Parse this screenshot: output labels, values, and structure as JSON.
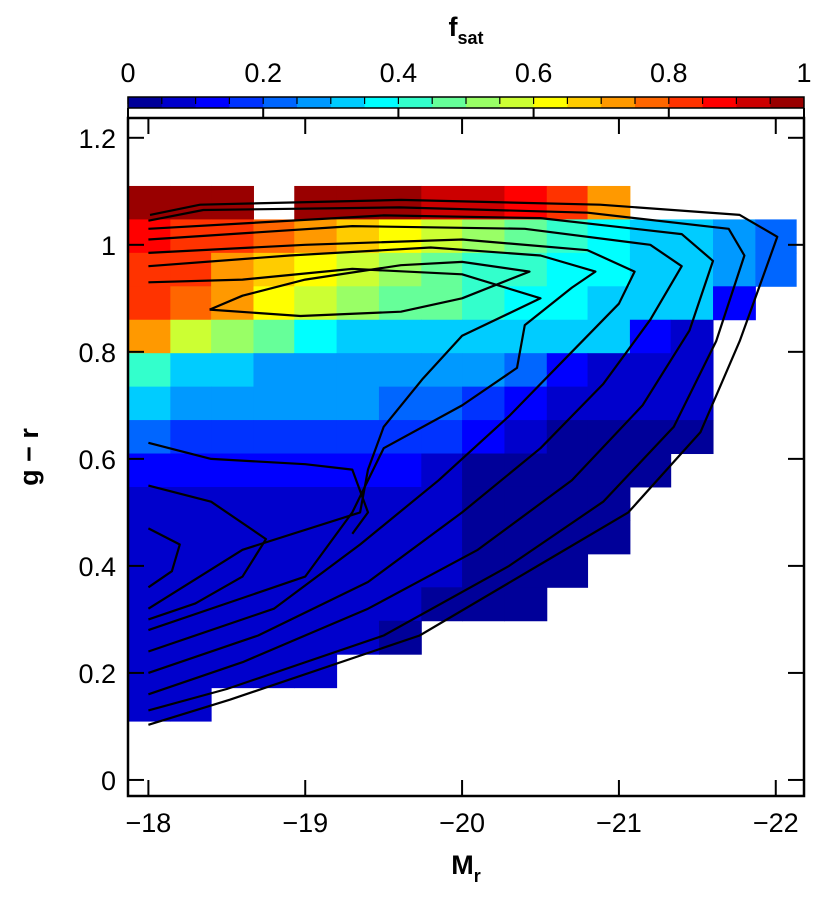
{
  "chart_data": {
    "type": "heatmap",
    "colormap": "jet",
    "colorbar": {
      "label": "f",
      "label_sub": "sat",
      "lim": [
        0,
        1
      ],
      "ticks": [
        0,
        0.2,
        0.4,
        0.6,
        0.8,
        1
      ],
      "levels": 20
    },
    "xlabel": "M",
    "xlabel_sub": "r",
    "ylabel": "g − r",
    "xlim": [
      -17.87,
      -22.18
    ],
    "ylim": [
      -0.03,
      1.237
    ],
    "xticks": [
      {
        "value": -18,
        "label": "−18"
      },
      {
        "value": -19,
        "label": "−19"
      },
      {
        "value": -20,
        "label": "−20"
      },
      {
        "value": -21,
        "label": "−21"
      },
      {
        "value": -22,
        "label": "−22"
      }
    ],
    "yticks": [
      0,
      0.2,
      0.4,
      0.6,
      0.8,
      1,
      1.2
    ],
    "x_edges": [
      -17.87,
      -18.14,
      -18.4,
      -18.67,
      -18.93,
      -19.2,
      -19.47,
      -19.74,
      -20.0,
      -20.27,
      -20.54,
      -20.8,
      -21.07,
      -21.33,
      -21.6,
      -21.87,
      -22.13
    ],
    "y_edges": [
      1.11,
      1.0475,
      0.985,
      0.9225,
      0.86,
      0.7975,
      0.735,
      0.6725,
      0.61,
      0.5475,
      0.485,
      0.4225,
      0.36,
      0.2975,
      0.235,
      0.1725,
      0.11
    ],
    "z": [
      [
        0.95,
        0.95,
        0.95,
        null,
        0.95,
        0.95,
        0.95,
        0.93,
        0.92,
        0.88,
        0.8,
        0.7,
        null,
        null,
        null,
        null
      ],
      [
        0.85,
        0.83,
        0.8,
        0.75,
        0.7,
        0.65,
        0.6,
        0.55,
        0.5,
        0.45,
        0.4,
        0.35,
        0.32,
        0.3,
        0.27,
        0.2
      ],
      [
        0.82,
        0.8,
        0.72,
        0.65,
        0.6,
        0.55,
        0.5,
        0.45,
        0.42,
        0.4,
        0.38,
        0.35,
        0.33,
        0.3,
        0.28,
        0.2
      ],
      [
        0.8,
        0.75,
        0.7,
        0.6,
        0.55,
        0.5,
        0.48,
        0.45,
        0.4,
        0.38,
        0.36,
        0.34,
        0.32,
        0.3,
        0.12,
        null
      ],
      [
        0.72,
        0.58,
        0.5,
        0.45,
        0.35,
        0.33,
        0.32,
        0.32,
        0.32,
        0.32,
        0.32,
        0.3,
        0.1,
        0.08,
        null,
        null
      ],
      [
        0.4,
        0.3,
        0.3,
        0.28,
        0.28,
        0.28,
        0.28,
        0.28,
        0.25,
        0.22,
        0.1,
        0.08,
        0.06,
        0.06,
        null,
        null
      ],
      [
        0.3,
        0.25,
        0.25,
        0.25,
        0.25,
        0.25,
        0.2,
        0.2,
        0.18,
        0.1,
        0.05,
        0.05,
        0.05,
        0.05,
        null,
        null
      ],
      [
        0.2,
        0.18,
        0.18,
        0.18,
        0.18,
        0.18,
        0.18,
        0.18,
        0.1,
        0.05,
        0.04,
        0.04,
        0.04,
        0.04,
        null,
        null
      ],
      [
        0.12,
        0.12,
        0.12,
        0.12,
        0.12,
        0.12,
        0.12,
        0.05,
        0.04,
        0.04,
        0.04,
        0.04,
        0.04,
        null,
        null,
        null
      ],
      [
        0.08,
        0.08,
        0.07,
        0.07,
        0.06,
        0.06,
        0.05,
        0.05,
        0.04,
        0.04,
        0.04,
        0.04,
        null,
        null,
        null,
        null
      ],
      [
        0.08,
        0.07,
        0.07,
        0.06,
        0.06,
        0.06,
        0.05,
        0.05,
        0.04,
        0.04,
        0.04,
        0.04,
        null,
        null,
        null,
        null
      ],
      [
        0.07,
        0.07,
        0.06,
        0.06,
        0.06,
        0.05,
        0.05,
        0.05,
        0.04,
        0.04,
        0.04,
        null,
        null,
        null,
        null,
        null
      ],
      [
        0.07,
        0.06,
        0.06,
        0.06,
        0.05,
        0.05,
        0.05,
        0.04,
        0.04,
        0.04,
        null,
        null,
        null,
        null,
        null,
        null
      ],
      [
        0.06,
        0.06,
        0.06,
        0.05,
        0.05,
        0.05,
        0.04,
        null,
        null,
        null,
        null,
        null,
        null,
        null,
        null,
        null
      ],
      [
        0.06,
        0.06,
        0.05,
        0.05,
        0.05,
        null,
        null,
        null,
        null,
        null,
        null,
        null,
        null,
        null,
        null,
        null
      ],
      [
        0.06,
        0.06,
        null,
        null,
        null,
        null,
        null,
        null,
        null,
        null,
        null,
        null,
        null,
        null,
        null,
        null
      ]
    ],
    "contours": [
      {
        "x": [
          -18.0,
          -18.52,
          -19.73,
          -20.54,
          -21.06,
          -21.52,
          -21.77,
          -21.93,
          -22.01,
          -21.77,
          -20.88,
          -19.61,
          -18.33,
          -18.01
        ],
        "y": [
          0.103,
          0.15,
          0.27,
          0.41,
          0.5,
          0.65,
          0.82,
          0.95,
          1.015,
          1.056,
          1.075,
          1.084,
          1.075,
          1.056
        ]
      },
      {
        "x": [
          -18.0,
          -18.5,
          -19.5,
          -20.3,
          -20.9,
          -21.35,
          -21.62,
          -21.8,
          -21.7,
          -20.8,
          -19.6,
          -18.35,
          -18.0
        ],
        "y": [
          0.13,
          0.17,
          0.27,
          0.4,
          0.52,
          0.66,
          0.82,
          0.98,
          1.03,
          1.06,
          1.07,
          1.065,
          1.045
        ]
      },
      {
        "x": [
          -18.0,
          -18.6,
          -19.4,
          -20.1,
          -20.7,
          -21.15,
          -21.45,
          -21.6,
          -21.4,
          -20.5,
          -19.5,
          -18.0
        ],
        "y": [
          0.16,
          0.22,
          0.32,
          0.43,
          0.56,
          0.7,
          0.84,
          0.97,
          1.02,
          1.05,
          1.055,
          1.03
        ]
      },
      {
        "x": [
          -18.0,
          -18.7,
          -19.4,
          -20.0,
          -20.5,
          -20.9,
          -21.2,
          -21.4,
          -21.2,
          -20.4,
          -19.3,
          -18.0
        ],
        "y": [
          0.2,
          0.27,
          0.37,
          0.5,
          0.62,
          0.74,
          0.86,
          0.96,
          1.0,
          1.03,
          1.035,
          1.01
        ]
      },
      {
        "x": [
          -18.0,
          -18.8,
          -19.35,
          -19.85,
          -20.3,
          -20.7,
          -21.0,
          -21.1,
          -20.8,
          -20.0,
          -19.0,
          -18.0
        ],
        "y": [
          0.24,
          0.32,
          0.44,
          0.56,
          0.68,
          0.8,
          0.89,
          0.95,
          0.99,
          1.01,
          1.0,
          0.985
        ]
      },
      {
        "x": [
          -18.0,
          -19.0,
          -19.3,
          -19.5,
          -20.0,
          -20.35,
          -20.4,
          -20.7,
          -20.85,
          -20.5,
          -19.8,
          -18.9,
          -18.0
        ],
        "y": [
          0.28,
          0.38,
          0.5,
          0.62,
          0.7,
          0.77,
          0.85,
          0.92,
          0.95,
          0.98,
          0.995,
          0.98,
          0.96
        ]
      },
      {
        "x": [
          -18.0,
          -18.6,
          -19.35,
          -19.4,
          -19.5,
          -19.75,
          -20.0,
          -20.5,
          -20.0,
          -19.3,
          -18.6,
          -18.0
        ],
        "y": [
          0.32,
          0.43,
          0.5,
          0.58,
          0.66,
          0.75,
          0.83,
          0.9,
          0.945,
          0.955,
          0.935,
          0.93
        ]
      },
      {
        "x": [
          -18.39,
          -18.97,
          -19.61,
          -20.0,
          -20.43,
          -20.0,
          -19.61,
          -19.0,
          -18.6,
          -18.39
        ],
        "y": [
          0.879,
          0.867,
          0.875,
          0.9,
          0.95,
          0.968,
          0.962,
          0.935,
          0.905,
          0.879
        ]
      },
      {
        "x": [
          -18.0,
          -18.4,
          -19.0,
          -19.3,
          -19.4,
          -19.3
        ],
        "y": [
          0.63,
          0.6,
          0.59,
          0.58,
          0.5,
          0.46
        ]
      },
      {
        "x": [
          -18.0,
          -18.4,
          -18.75,
          -18.6,
          -18.3,
          -18.0
        ],
        "y": [
          0.55,
          0.52,
          0.45,
          0.38,
          0.33,
          0.3
        ]
      },
      {
        "x": [
          -18.0,
          -18.2,
          -18.15,
          -18.0
        ],
        "y": [
          0.47,
          0.44,
          0.39,
          0.36
        ]
      }
    ]
  }
}
